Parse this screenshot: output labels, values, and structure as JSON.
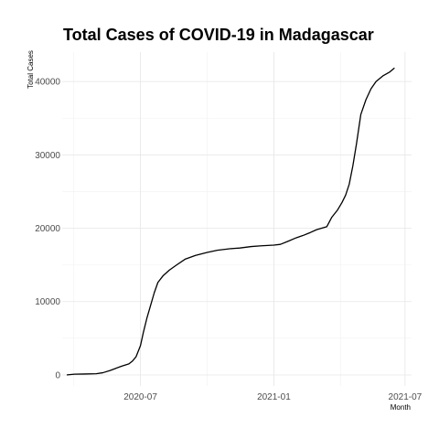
{
  "chart_data": {
    "type": "line",
    "title": "Total Cases of COVID-19 in Madagascar",
    "xlabel": "Month",
    "ylabel": "Total Cases",
    "x_type": "date",
    "xlim": [
      "2020-03-15",
      "2021-07-10"
    ],
    "ylim": [
      -1500,
      44000
    ],
    "x_ticks": [
      "2020-07",
      "2021-01",
      "2021-07"
    ],
    "y_ticks": [
      0,
      10000,
      20000,
      30000,
      40000
    ],
    "grid": true,
    "line_color": "#000000",
    "series": [
      {
        "x": [
          "2020-03-22",
          "2020-04-01",
          "2020-04-15",
          "2020-05-01",
          "2020-05-10",
          "2020-05-20",
          "2020-05-28",
          "2020-06-05",
          "2020-06-15",
          "2020-06-20",
          "2020-06-25",
          "2020-07-01",
          "2020-07-05",
          "2020-07-10",
          "2020-07-15",
          "2020-07-20",
          "2020-07-25",
          "2020-08-01",
          "2020-08-10",
          "2020-08-20",
          "2020-09-01",
          "2020-09-15",
          "2020-10-01",
          "2020-10-15",
          "2020-11-01",
          "2020-11-15",
          "2020-12-01",
          "2020-12-15",
          "2021-01-01",
          "2021-01-10",
          "2021-01-20",
          "2021-02-01",
          "2021-02-10",
          "2021-02-20",
          "2021-03-01",
          "2021-03-15",
          "2021-03-22",
          "2021-03-30",
          "2021-04-05",
          "2021-04-10",
          "2021-04-15",
          "2021-04-20",
          "2021-04-25",
          "2021-05-01",
          "2021-05-08",
          "2021-05-15",
          "2021-05-22",
          "2021-06-01",
          "2021-06-10",
          "2021-06-16"
        ],
        "values": [
          10,
          100,
          130,
          170,
          300,
          600,
          900,
          1200,
          1500,
          1900,
          2500,
          4000,
          5800,
          7800,
          9500,
          11200,
          12600,
          13500,
          14300,
          15000,
          15800,
          16300,
          16700,
          17000,
          17200,
          17300,
          17500,
          17600,
          17700,
          17800,
          18200,
          18700,
          19000,
          19400,
          19800,
          20200,
          21500,
          22500,
          23500,
          24500,
          26000,
          28500,
          31500,
          35500,
          37500,
          39000,
          40000,
          40800,
          41300,
          41800
        ]
      }
    ]
  }
}
